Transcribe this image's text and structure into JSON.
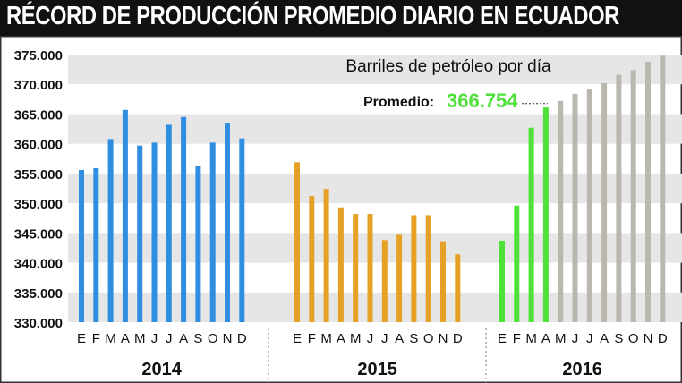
{
  "title": "RÉCORD DE PRODUCCIÓN PROMEDIO DIARIO EN ECUADOR",
  "colors": {
    "y2014": "#2f8ee0",
    "y2015": "#e5a126",
    "y2016_actual": "#4fe13a",
    "y2016_projected": "#b9b7ae",
    "average_value": "#4fe13a",
    "grid_band": "#e6e6e6"
  },
  "chart_data": {
    "type": "bar",
    "subtitle": "Barriles de petróleo por día",
    "ylim": [
      330000,
      375000
    ],
    "yticks": [
      "330.000",
      "335.000",
      "340.000",
      "345.000",
      "350.000",
      "355.000",
      "360.000",
      "365.000",
      "370.000",
      "375.000"
    ],
    "ytick_values": [
      330000,
      335000,
      340000,
      345000,
      350000,
      355000,
      360000,
      365000,
      370000,
      375000
    ],
    "average": {
      "label": "Promedio:",
      "value_text": "366.754",
      "value": 366754
    },
    "groups": [
      {
        "year": "2014",
        "months": [
          "E",
          "F",
          "M",
          "A",
          "M",
          "J",
          "J",
          "A",
          "S",
          "O",
          "N",
          "D"
        ],
        "values": [
          355600,
          355900,
          360800,
          365700,
          359700,
          360200,
          363200,
          364500,
          356200,
          360200,
          363500,
          360900
        ]
      },
      {
        "year": "2015",
        "months": [
          "E",
          "F",
          "M",
          "A",
          "M",
          "J",
          "J",
          "A",
          "S",
          "O",
          "N",
          "D"
        ],
        "values": [
          356900,
          351200,
          352400,
          349300,
          348200,
          348200,
          343800,
          344700,
          348000,
          348000,
          343600,
          341400
        ]
      },
      {
        "year": "2016",
        "months": [
          "E",
          "F",
          "M",
          "A",
          "M",
          "J",
          "J",
          "A",
          "S",
          "O",
          "N",
          "D"
        ],
        "values": [
          343700,
          349600,
          362700,
          366100,
          367200,
          368400,
          369200,
          370200,
          371600,
          372400,
          373800,
          374800
        ],
        "actual_months": 4
      }
    ]
  }
}
